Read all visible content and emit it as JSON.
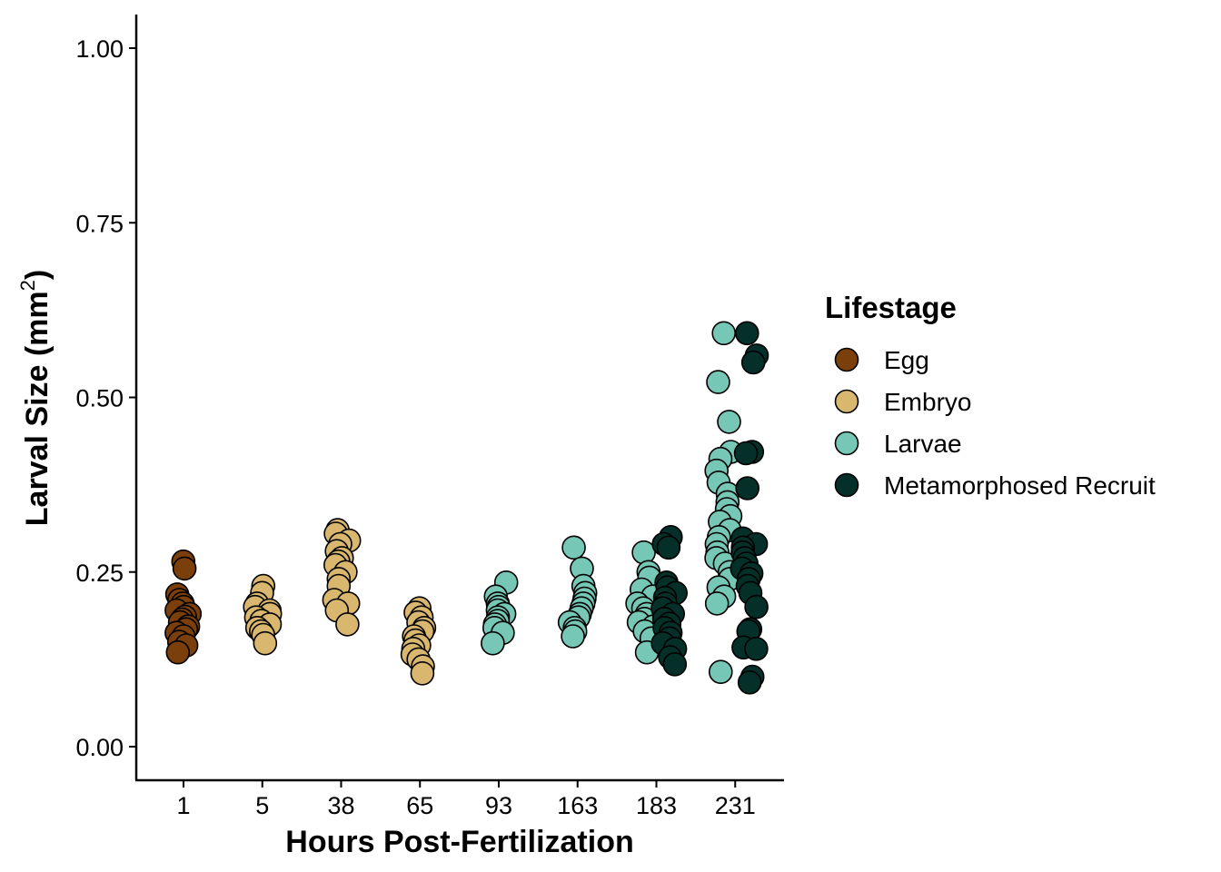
{
  "chart_data": {
    "type": "scatter",
    "xlabel": "Hours Post-Fertilization",
    "ylabel_main": "Larval Size (mm",
    "ylabel_sup": "2",
    "ylabel_close": ")",
    "categories": [
      "1",
      "5",
      "38",
      "65",
      "93",
      "163",
      "183",
      "231"
    ],
    "yticks": [
      "0.00",
      "0.25",
      "0.50",
      "0.75",
      "1.00"
    ],
    "ylim": [
      -0.05,
      1.05
    ],
    "grid": false,
    "legend": {
      "title": "Lifestage",
      "position": "right",
      "items": [
        {
          "label": "Egg",
          "color": "#7b3f0c"
        },
        {
          "label": "Embryo",
          "color": "#d9b76f"
        },
        {
          "label": "Larvae",
          "color": "#77c7b6"
        },
        {
          "label": "Metamorphosed Recruit",
          "color": "#05302a"
        }
      ]
    },
    "series": [
      {
        "name": "Egg",
        "color": "#7b3f0c",
        "points": [
          {
            "x": "1",
            "y": 0.265
          },
          {
            "x": "1",
            "y": 0.255
          },
          {
            "x": "1",
            "y": 0.218
          },
          {
            "x": "1",
            "y": 0.21
          },
          {
            "x": "1",
            "y": 0.205
          },
          {
            "x": "1",
            "y": 0.2
          },
          {
            "x": "1",
            "y": 0.195
          },
          {
            "x": "1",
            "y": 0.19
          },
          {
            "x": "1",
            "y": 0.186
          },
          {
            "x": "1",
            "y": 0.182
          },
          {
            "x": "1",
            "y": 0.178
          },
          {
            "x": "1",
            "y": 0.172
          },
          {
            "x": "1",
            "y": 0.168
          },
          {
            "x": "1",
            "y": 0.163
          },
          {
            "x": "1",
            "y": 0.158
          },
          {
            "x": "1",
            "y": 0.15
          },
          {
            "x": "1",
            "y": 0.145
          },
          {
            "x": "1",
            "y": 0.135
          }
        ]
      },
      {
        "name": "Embryo",
        "color": "#d9b76f",
        "points": [
          {
            "x": "5",
            "y": 0.23
          },
          {
            "x": "5",
            "y": 0.22
          },
          {
            "x": "5",
            "y": 0.205
          },
          {
            "x": "5",
            "y": 0.2
          },
          {
            "x": "5",
            "y": 0.195
          },
          {
            "x": "5",
            "y": 0.19
          },
          {
            "x": "5",
            "y": 0.185
          },
          {
            "x": "5",
            "y": 0.18
          },
          {
            "x": "5",
            "y": 0.175
          },
          {
            "x": "5",
            "y": 0.17
          },
          {
            "x": "5",
            "y": 0.165
          },
          {
            "x": "5",
            "y": 0.16
          },
          {
            "x": "5",
            "y": 0.148
          },
          {
            "x": "38",
            "y": 0.31
          },
          {
            "x": "38",
            "y": 0.305
          },
          {
            "x": "38",
            "y": 0.295
          },
          {
            "x": "38",
            "y": 0.29
          },
          {
            "x": "38",
            "y": 0.28
          },
          {
            "x": "38",
            "y": 0.27
          },
          {
            "x": "38",
            "y": 0.265
          },
          {
            "x": "38",
            "y": 0.26
          },
          {
            "x": "38",
            "y": 0.25
          },
          {
            "x": "38",
            "y": 0.24
          },
          {
            "x": "38",
            "y": 0.23
          },
          {
            "x": "38",
            "y": 0.21
          },
          {
            "x": "38",
            "y": 0.205
          },
          {
            "x": "38",
            "y": 0.195
          },
          {
            "x": "38",
            "y": 0.175
          },
          {
            "x": "65",
            "y": 0.198
          },
          {
            "x": "65",
            "y": 0.192
          },
          {
            "x": "65",
            "y": 0.185
          },
          {
            "x": "65",
            "y": 0.178
          },
          {
            "x": "65",
            "y": 0.17
          },
          {
            "x": "65",
            "y": 0.165
          },
          {
            "x": "65",
            "y": 0.158
          },
          {
            "x": "65",
            "y": 0.152
          },
          {
            "x": "65",
            "y": 0.145
          },
          {
            "x": "65",
            "y": 0.14
          },
          {
            "x": "65",
            "y": 0.132
          },
          {
            "x": "65",
            "y": 0.125
          },
          {
            "x": "65",
            "y": 0.115
          },
          {
            "x": "65",
            "y": 0.105
          }
        ]
      },
      {
        "name": "Larvae",
        "color": "#77c7b6",
        "points": [
          {
            "x": "93",
            "y": 0.235
          },
          {
            "x": "93",
            "y": 0.215
          },
          {
            "x": "93",
            "y": 0.205
          },
          {
            "x": "93",
            "y": 0.2
          },
          {
            "x": "93",
            "y": 0.195
          },
          {
            "x": "93",
            "y": 0.19
          },
          {
            "x": "93",
            "y": 0.185
          },
          {
            "x": "93",
            "y": 0.18
          },
          {
            "x": "93",
            "y": 0.175
          },
          {
            "x": "93",
            "y": 0.17
          },
          {
            "x": "93",
            "y": 0.163
          },
          {
            "x": "93",
            "y": 0.148
          },
          {
            "x": "163",
            "y": 0.285
          },
          {
            "x": "163",
            "y": 0.255
          },
          {
            "x": "163",
            "y": 0.23
          },
          {
            "x": "163",
            "y": 0.22
          },
          {
            "x": "163",
            "y": 0.212
          },
          {
            "x": "163",
            "y": 0.205
          },
          {
            "x": "163",
            "y": 0.198
          },
          {
            "x": "163",
            "y": 0.19
          },
          {
            "x": "163",
            "y": 0.185
          },
          {
            "x": "163",
            "y": 0.178
          },
          {
            "x": "163",
            "y": 0.17
          },
          {
            "x": "163",
            "y": 0.165
          },
          {
            "x": "163",
            "y": 0.158
          },
          {
            "x": "183",
            "y": 0.278
          },
          {
            "x": "183",
            "y": 0.25
          },
          {
            "x": "183",
            "y": 0.242
          },
          {
            "x": "183",
            "y": 0.225
          },
          {
            "x": "183",
            "y": 0.215
          },
          {
            "x": "183",
            "y": 0.205
          },
          {
            "x": "183",
            "y": 0.198
          },
          {
            "x": "183",
            "y": 0.19
          },
          {
            "x": "183",
            "y": 0.183
          },
          {
            "x": "183",
            "y": 0.178
          },
          {
            "x": "183",
            "y": 0.172
          },
          {
            "x": "183",
            "y": 0.165
          },
          {
            "x": "183",
            "y": 0.155
          },
          {
            "x": "183",
            "y": 0.135
          },
          {
            "x": "231",
            "y": 0.592
          },
          {
            "x": "231",
            "y": 0.522
          },
          {
            "x": "231",
            "y": 0.465
          },
          {
            "x": "231",
            "y": 0.422
          },
          {
            "x": "231",
            "y": 0.412
          },
          {
            "x": "231",
            "y": 0.395
          },
          {
            "x": "231",
            "y": 0.378
          },
          {
            "x": "231",
            "y": 0.362
          },
          {
            "x": "231",
            "y": 0.35
          },
          {
            "x": "231",
            "y": 0.34
          },
          {
            "x": "231",
            "y": 0.33
          },
          {
            "x": "231",
            "y": 0.322
          },
          {
            "x": "231",
            "y": 0.31
          },
          {
            "x": "231",
            "y": 0.3
          },
          {
            "x": "231",
            "y": 0.29
          },
          {
            "x": "231",
            "y": 0.278
          },
          {
            "x": "231",
            "y": 0.27
          },
          {
            "x": "231",
            "y": 0.262
          },
          {
            "x": "231",
            "y": 0.25
          },
          {
            "x": "231",
            "y": 0.24
          },
          {
            "x": "231",
            "y": 0.228
          },
          {
            "x": "231",
            "y": 0.215
          },
          {
            "x": "231",
            "y": 0.205
          },
          {
            "x": "231",
            "y": 0.107
          }
        ]
      },
      {
        "name": "Metamorphosed Recruit",
        "color": "#05302a",
        "points": [
          {
            "x": "183",
            "y": 0.3
          },
          {
            "x": "183",
            "y": 0.29
          },
          {
            "x": "183",
            "y": 0.285
          },
          {
            "x": "183",
            "y": 0.235
          },
          {
            "x": "183",
            "y": 0.228
          },
          {
            "x": "183",
            "y": 0.22
          },
          {
            "x": "183",
            "y": 0.213
          },
          {
            "x": "183",
            "y": 0.205
          },
          {
            "x": "183",
            "y": 0.198
          },
          {
            "x": "183",
            "y": 0.19
          },
          {
            "x": "183",
            "y": 0.183
          },
          {
            "x": "183",
            "y": 0.176
          },
          {
            "x": "183",
            "y": 0.17
          },
          {
            "x": "183",
            "y": 0.163
          },
          {
            "x": "183",
            "y": 0.155
          },
          {
            "x": "183",
            "y": 0.148
          },
          {
            "x": "183",
            "y": 0.14
          },
          {
            "x": "183",
            "y": 0.128
          },
          {
            "x": "183",
            "y": 0.118
          },
          {
            "x": "231",
            "y": 0.592
          },
          {
            "x": "231",
            "y": 0.56
          },
          {
            "x": "231",
            "y": 0.55
          },
          {
            "x": "231",
            "y": 0.422
          },
          {
            "x": "231",
            "y": 0.42
          },
          {
            "x": "231",
            "y": 0.37
          },
          {
            "x": "231",
            "y": 0.298
          },
          {
            "x": "231",
            "y": 0.29
          },
          {
            "x": "231",
            "y": 0.285
          },
          {
            "x": "231",
            "y": 0.278
          },
          {
            "x": "231",
            "y": 0.27
          },
          {
            "x": "231",
            "y": 0.262
          },
          {
            "x": "231",
            "y": 0.255
          },
          {
            "x": "231",
            "y": 0.248
          },
          {
            "x": "231",
            "y": 0.24
          },
          {
            "x": "231",
            "y": 0.23
          },
          {
            "x": "231",
            "y": 0.22
          },
          {
            "x": "231",
            "y": 0.2
          },
          {
            "x": "231",
            "y": 0.168
          },
          {
            "x": "231",
            "y": 0.165
          },
          {
            "x": "231",
            "y": 0.142
          },
          {
            "x": "231",
            "y": 0.14
          },
          {
            "x": "231",
            "y": 0.1
          },
          {
            "x": "231",
            "y": 0.092
          }
        ]
      }
    ]
  }
}
